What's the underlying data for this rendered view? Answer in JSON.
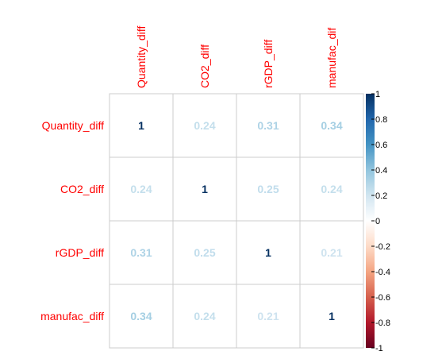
{
  "chart_data": {
    "type": "heatmap",
    "variables": [
      "Quantity_diff",
      "CO2_diff",
      "rGDP_diff",
      "manufac_dif"
    ],
    "row_labels": [
      "Quantity_diff",
      "CO2_diff",
      "rGDP_diff",
      "manufac_diff"
    ],
    "col_labels": [
      "Quantity_diff",
      "CO2_diff",
      "rGDP_diff",
      "manufac_dif"
    ],
    "matrix": [
      [
        1,
        0.24,
        0.31,
        0.34
      ],
      [
        0.24,
        1,
        0.25,
        0.24
      ],
      [
        0.31,
        0.25,
        1,
        0.21
      ],
      [
        0.34,
        0.24,
        0.21,
        1
      ]
    ],
    "display": "number",
    "colorbar": {
      "range": [
        -1,
        1
      ],
      "ticks": [
        "1",
        "0.8",
        "0.6",
        "0.4",
        "0.2",
        "0",
        "-0.2",
        "-0.4",
        "-0.6",
        "-0.8",
        "-1"
      ],
      "colors": {
        "neg": "#67001F",
        "mid": "#FFFFFF",
        "pos": "#053061"
      }
    },
    "label_color": "#FF0000",
    "grid_color": "#CCCCCC"
  }
}
